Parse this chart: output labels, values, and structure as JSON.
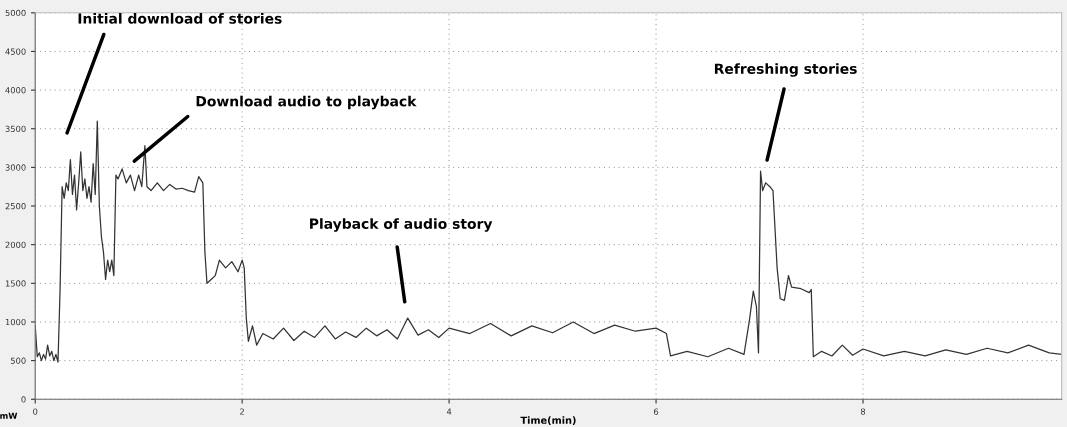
{
  "chart_data": {
    "type": "line",
    "xlabel": "Time(min)",
    "ylabel": "mW",
    "xlim": [
      0,
      9.92
    ],
    "ylim": [
      0,
      5000
    ],
    "xticks": [
      0,
      2,
      4,
      6,
      8
    ],
    "yticks": [
      0,
      500,
      1000,
      1500,
      2000,
      2500,
      3000,
      3500,
      4000,
      4500,
      5000
    ],
    "grid": true,
    "marker": "none",
    "line_style": "solid",
    "legend": false,
    "annotations": [
      "Initial download of stories",
      "Download audio to playback",
      "Playback of audio story",
      "Refreshing stories"
    ],
    "series": [
      {
        "color": "#333333",
        "x": [
          0.0,
          0.02,
          0.04,
          0.06,
          0.08,
          0.1,
          0.12,
          0.14,
          0.16,
          0.18,
          0.2,
          0.22,
          0.24,
          0.26,
          0.28,
          0.3,
          0.32,
          0.34,
          0.36,
          0.38,
          0.4,
          0.42,
          0.44,
          0.46,
          0.48,
          0.5,
          0.52,
          0.54,
          0.56,
          0.58,
          0.6,
          0.62,
          0.64,
          0.66,
          0.68,
          0.7,
          0.72,
          0.74,
          0.76,
          0.78,
          0.8,
          0.84,
          0.88,
          0.92,
          0.96,
          1.0,
          1.03,
          1.06,
          1.08,
          1.12,
          1.18,
          1.24,
          1.3,
          1.36,
          1.42,
          1.48,
          1.54,
          1.58,
          1.62,
          1.64,
          1.66,
          1.7,
          1.74,
          1.78,
          1.84,
          1.9,
          1.96,
          2.0,
          2.02,
          2.04,
          2.06,
          2.1,
          2.14,
          2.2,
          2.3,
          2.4,
          2.5,
          2.6,
          2.7,
          2.8,
          2.9,
          3.0,
          3.1,
          3.2,
          3.3,
          3.4,
          3.5,
          3.6,
          3.7,
          3.8,
          3.9,
          4.0,
          4.2,
          4.4,
          4.6,
          4.8,
          5.0,
          5.2,
          5.4,
          5.6,
          5.8,
          6.0,
          6.1,
          6.14,
          6.3,
          6.5,
          6.7,
          6.85,
          6.9,
          6.94,
          6.97,
          6.99,
          7.01,
          7.03,
          7.06,
          7.1,
          7.13,
          7.17,
          7.2,
          7.24,
          7.28,
          7.31,
          7.4,
          7.48,
          7.5,
          7.52,
          7.6,
          7.7,
          7.8,
          7.9,
          8.0,
          8.2,
          8.4,
          8.6,
          8.8,
          9.0,
          9.2,
          9.4,
          9.6,
          9.8,
          9.92
        ],
        "values": [
          950,
          550,
          600,
          500,
          580,
          520,
          700,
          560,
          620,
          500,
          580,
          480,
          1400,
          2750,
          2600,
          2800,
          2700,
          3100,
          2650,
          2900,
          2450,
          2800,
          3200,
          2700,
          2850,
          2600,
          2750,
          2550,
          3050,
          2650,
          3600,
          2500,
          2100,
          1900,
          1550,
          1800,
          1650,
          1800,
          1600,
          2900,
          2850,
          2980,
          2800,
          2900,
          2700,
          2900,
          2750,
          3280,
          2750,
          2700,
          2800,
          2700,
          2780,
          2720,
          2730,
          2700,
          2680,
          2880,
          2800,
          1900,
          1500,
          1550,
          1600,
          1800,
          1700,
          1780,
          1650,
          1800,
          1700,
          1050,
          750,
          950,
          700,
          850,
          780,
          920,
          760,
          880,
          800,
          950,
          780,
          870,
          800,
          920,
          820,
          900,
          780,
          1050,
          830,
          900,
          800,
          920,
          850,
          980,
          820,
          950,
          860,
          1000,
          850,
          960,
          880,
          920,
          850,
          560,
          620,
          550,
          660,
          580,
          1000,
          1400,
          1200,
          600,
          2950,
          2700,
          2800,
          2750,
          2700,
          1700,
          1300,
          1280,
          1600,
          1450,
          1430,
          1380,
          1420,
          550,
          620,
          560,
          700,
          570,
          650,
          560,
          620,
          560,
          640,
          580,
          660,
          600,
          700,
          600,
          580
        ]
      }
    ]
  }
}
